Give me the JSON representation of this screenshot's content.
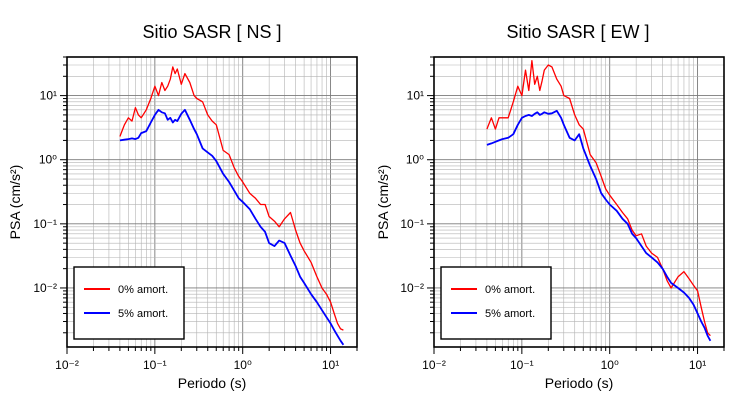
{
  "chart_data": [
    {
      "type": "line",
      "title": "Sitio SASR [ NS ]",
      "xlabel": "Periodo (s)",
      "ylabel": "PSA (cm/s²)",
      "x_scale": "log",
      "y_scale": "log",
      "xlim": [
        0.01,
        20
      ],
      "ylim": [
        0.0012,
        40
      ],
      "grid": true,
      "legend_position": "bottom-left",
      "x_tick_labels": [
        "10⁻²",
        "10⁻¹",
        "10⁰",
        "10¹"
      ],
      "y_tick_labels": [
        "10⁻²",
        "10⁻¹",
        "10⁰",
        "10¹"
      ],
      "series": [
        {
          "name": "0% amort.",
          "color": "#ff0000",
          "x": [
            0.04,
            0.045,
            0.05,
            0.055,
            0.06,
            0.065,
            0.07,
            0.08,
            0.09,
            0.1,
            0.11,
            0.12,
            0.13,
            0.14,
            0.15,
            0.16,
            0.17,
            0.18,
            0.2,
            0.22,
            0.25,
            0.28,
            0.3,
            0.35,
            0.4,
            0.45,
            0.5,
            0.6,
            0.7,
            0.8,
            0.9,
            1.0,
            1.2,
            1.4,
            1.6,
            1.8,
            2.0,
            2.3,
            2.6,
            3.0,
            3.5,
            4.0,
            4.5,
            5.0,
            6.0,
            7.0,
            8.0,
            9.0,
            10.0,
            11.0,
            12.0,
            13.0,
            14.0
          ],
          "y": [
            2.3,
            3.5,
            4.5,
            4.0,
            6.5,
            5.0,
            4.5,
            6.0,
            9.0,
            14.0,
            10.0,
            16.0,
            12.0,
            14.0,
            18.0,
            28.0,
            22.0,
            26.0,
            15.0,
            22.0,
            16.0,
            10.0,
            9.0,
            8.0,
            5.0,
            4.0,
            3.5,
            1.4,
            1.2,
            0.75,
            0.55,
            0.45,
            0.3,
            0.25,
            0.2,
            0.2,
            0.13,
            0.11,
            0.09,
            0.12,
            0.15,
            0.08,
            0.05,
            0.038,
            0.025,
            0.015,
            0.01,
            0.008,
            0.006,
            0.004,
            0.0028,
            0.0023,
            0.0022
          ]
        },
        {
          "name": "5% amort.",
          "color": "#0000ff",
          "x": [
            0.04,
            0.045,
            0.05,
            0.055,
            0.06,
            0.065,
            0.07,
            0.08,
            0.09,
            0.1,
            0.11,
            0.12,
            0.13,
            0.14,
            0.15,
            0.16,
            0.17,
            0.18,
            0.2,
            0.22,
            0.25,
            0.28,
            0.3,
            0.35,
            0.4,
            0.45,
            0.5,
            0.6,
            0.7,
            0.8,
            0.9,
            1.0,
            1.2,
            1.4,
            1.6,
            1.8,
            2.0,
            2.3,
            2.6,
            3.0,
            3.5,
            4.0,
            4.5,
            5.0,
            6.0,
            7.0,
            8.0,
            9.0,
            10.0,
            11.0,
            12.0,
            13.0,
            14.0
          ],
          "y": [
            2.0,
            2.05,
            2.1,
            2.15,
            2.1,
            2.2,
            2.6,
            2.8,
            3.8,
            5.0,
            6.0,
            5.5,
            5.3,
            4.2,
            4.5,
            3.8,
            4.2,
            4.0,
            5.2,
            6.0,
            4.2,
            3.0,
            2.5,
            1.5,
            1.3,
            1.15,
            0.95,
            0.6,
            0.45,
            0.33,
            0.25,
            0.22,
            0.17,
            0.12,
            0.09,
            0.075,
            0.05,
            0.045,
            0.055,
            0.05,
            0.032,
            0.022,
            0.015,
            0.012,
            0.008,
            0.006,
            0.0045,
            0.0035,
            0.0028,
            0.0022,
            0.0018,
            0.0015,
            0.0013
          ]
        }
      ]
    },
    {
      "type": "line",
      "title": "Sitio SASR [ EW ]",
      "xlabel": "Periodo (s)",
      "ylabel": "PSA (cm/s²)",
      "x_scale": "log",
      "y_scale": "log",
      "xlim": [
        0.01,
        20
      ],
      "ylim": [
        0.0012,
        40
      ],
      "grid": true,
      "legend_position": "bottom-left",
      "x_tick_labels": [
        "10⁻²",
        "10⁻¹",
        "10⁰",
        "10¹"
      ],
      "y_tick_labels": [
        "10⁻²",
        "10⁻¹",
        "10⁰",
        "10¹"
      ],
      "series": [
        {
          "name": "0% amort.",
          "color": "#ff0000",
          "x": [
            0.04,
            0.045,
            0.05,
            0.055,
            0.06,
            0.07,
            0.08,
            0.09,
            0.1,
            0.11,
            0.12,
            0.13,
            0.14,
            0.15,
            0.16,
            0.17,
            0.18,
            0.2,
            0.22,
            0.25,
            0.28,
            0.3,
            0.35,
            0.4,
            0.45,
            0.5,
            0.6,
            0.7,
            0.8,
            0.9,
            1.0,
            1.2,
            1.4,
            1.6,
            1.8,
            2.0,
            2.3,
            2.6,
            3.0,
            3.5,
            4.0,
            4.5,
            5.0,
            6.0,
            7.0,
            8.0,
            9.0,
            10.0,
            11.0,
            12.0,
            13.0,
            14.0
          ],
          "y": [
            3.0,
            4.5,
            3.0,
            4.5,
            4.5,
            4.5,
            8.0,
            14.0,
            10.0,
            25.0,
            12.0,
            35.0,
            15.0,
            20.0,
            12.0,
            17.0,
            25.0,
            30.0,
            28.0,
            18.0,
            14.0,
            10.0,
            9.0,
            5.0,
            3.5,
            3.0,
            1.2,
            0.9,
            0.55,
            0.35,
            0.28,
            0.2,
            0.15,
            0.12,
            0.08,
            0.065,
            0.07,
            0.045,
            0.035,
            0.03,
            0.02,
            0.013,
            0.01,
            0.015,
            0.018,
            0.014,
            0.011,
            0.009,
            0.005,
            0.003,
            0.002,
            0.0018
          ]
        },
        {
          "name": "5% amort.",
          "color": "#0000ff",
          "x": [
            0.04,
            0.045,
            0.05,
            0.055,
            0.06,
            0.07,
            0.08,
            0.09,
            0.1,
            0.11,
            0.12,
            0.13,
            0.14,
            0.15,
            0.16,
            0.17,
            0.18,
            0.2,
            0.22,
            0.25,
            0.28,
            0.3,
            0.35,
            0.4,
            0.45,
            0.5,
            0.6,
            0.7,
            0.8,
            0.9,
            1.0,
            1.2,
            1.4,
            1.6,
            1.8,
            2.0,
            2.3,
            2.6,
            3.0,
            3.5,
            4.0,
            4.5,
            5.0,
            6.0,
            7.0,
            8.0,
            9.0,
            10.0,
            11.0,
            12.0,
            13.0,
            14.0
          ],
          "y": [
            1.7,
            1.8,
            1.9,
            2.0,
            2.1,
            2.2,
            2.5,
            3.5,
            4.5,
            4.8,
            5.0,
            4.8,
            5.2,
            5.5,
            5.0,
            5.2,
            5.5,
            5.2,
            5.3,
            5.8,
            4.5,
            3.5,
            2.2,
            2.0,
            2.5,
            1.5,
            0.8,
            0.5,
            0.3,
            0.24,
            0.2,
            0.16,
            0.12,
            0.1,
            0.07,
            0.06,
            0.045,
            0.035,
            0.03,
            0.025,
            0.02,
            0.015,
            0.012,
            0.01,
            0.0085,
            0.007,
            0.0055,
            0.004,
            0.003,
            0.0024,
            0.0018,
            0.0015
          ]
        }
      ]
    }
  ]
}
